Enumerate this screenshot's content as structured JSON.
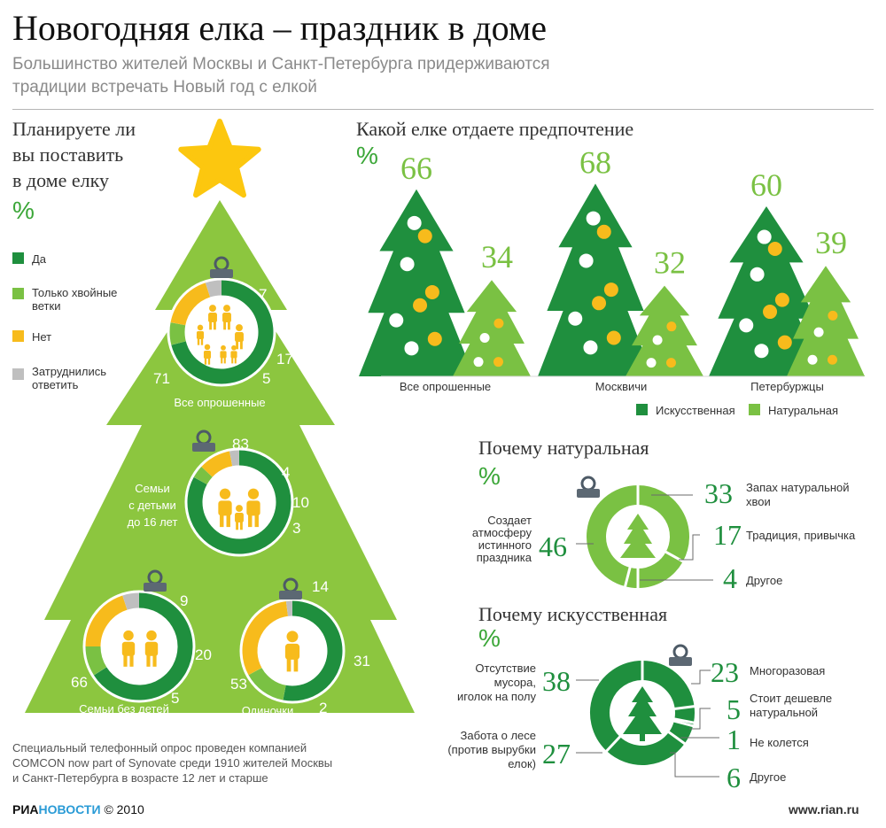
{
  "header": {
    "title": "Новогодняя елка – праздник в доме",
    "subtitle_line1": "Большинство жителей Москвы и Санкт-Петербурга придерживаются",
    "subtitle_line2": "традиции встречать Новый год с елкой"
  },
  "left_section": {
    "title_line1": "Планируете ли",
    "title_line2": "вы поставить",
    "title_line3": "в доме елку",
    "unit": "%",
    "legend": [
      {
        "label_line1": "Да",
        "label_line2": "",
        "color": "#1f8f3e"
      },
      {
        "label_line1": "Только хвойные",
        "label_line2": "ветки",
        "color": "#7ac143"
      },
      {
        "label_line1": "Нет",
        "label_line2": "",
        "color": "#f7bb1c"
      },
      {
        "label_line1": "Затруднились",
        "label_line2": "ответить",
        "color": "#bfbfbf"
      }
    ]
  },
  "preference_section": {
    "title": "Какой елке отдаете предпочтение",
    "unit": "%",
    "legend": [
      {
        "label": "Искусственная",
        "color": "#1f8f3e"
      },
      {
        "label": "Натуральная",
        "color": "#7ac143"
      }
    ]
  },
  "natural_section": {
    "title": "Почему натуральная",
    "unit": "%"
  },
  "artificial_section": {
    "title": "Почему искусственная",
    "unit": "%"
  },
  "footer": {
    "note_line1": "Специальный телефонный опрос проведен компанией",
    "note_line2": "COMCON now part of Synovate среди 1910 жителей Москвы",
    "note_line3": "и Санкт-Петербурга в возрасте 12 лет и старше",
    "brand_ria": "РИА",
    "brand_novosti": "НОВОСТИ",
    "copyright": "© 2010",
    "site": "www.rian.ru"
  },
  "colors": {
    "dark_green": "#1f8f3e",
    "light_green": "#7ac143",
    "yellow": "#f7bb1c",
    "gray": "#bfbfbf",
    "tree_bg": "#8cc63f",
    "star": "#fcc70f"
  },
  "chart_data": [
    {
      "type": "pie",
      "title": "Планируете ли вы поставить в доме елку",
      "series_names": [
        "Да",
        "Только хвойные ветки",
        "Нет",
        "Затруднились ответить"
      ],
      "groups": [
        {
          "label": "Все опрошенные",
          "values": [
            71,
            7,
            17,
            5
          ]
        },
        {
          "label": "Семьи с детьми до 16 лет",
          "values": [
            83,
            4,
            10,
            3
          ]
        },
        {
          "label": "Семьи без детей",
          "values": [
            66,
            9,
            20,
            5
          ]
        },
        {
          "label": "Одиночки",
          "values": [
            53,
            14,
            31,
            2
          ]
        }
      ]
    },
    {
      "type": "bar",
      "title": "Какой елке отдаете предпочтение",
      "categories": [
        "Все опрошенные",
        "Москвичи",
        "Петербуржцы"
      ],
      "series": [
        {
          "name": "Искусственная",
          "values": [
            66,
            68,
            60
          ]
        },
        {
          "name": "Натуральная",
          "values": [
            34,
            32,
            39
          ]
        }
      ]
    },
    {
      "type": "pie",
      "title": "Почему натуральная",
      "categories": [
        "Запах натуральной хвои",
        "Традиция, привычка",
        "Другое",
        "Создает атмосферу истинного праздника"
      ],
      "values": [
        33,
        17,
        4,
        46
      ]
    },
    {
      "type": "pie",
      "title": "Почему искусственная",
      "categories": [
        "Многоразовая",
        "Стоит дешевле натуральной",
        "Не колется",
        "Другое",
        "Забота о лесе (против вырубки елок)",
        "Отсутствие мусора, иголок на полу"
      ],
      "values": [
        23,
        5,
        1,
        6,
        27,
        38
      ]
    }
  ]
}
